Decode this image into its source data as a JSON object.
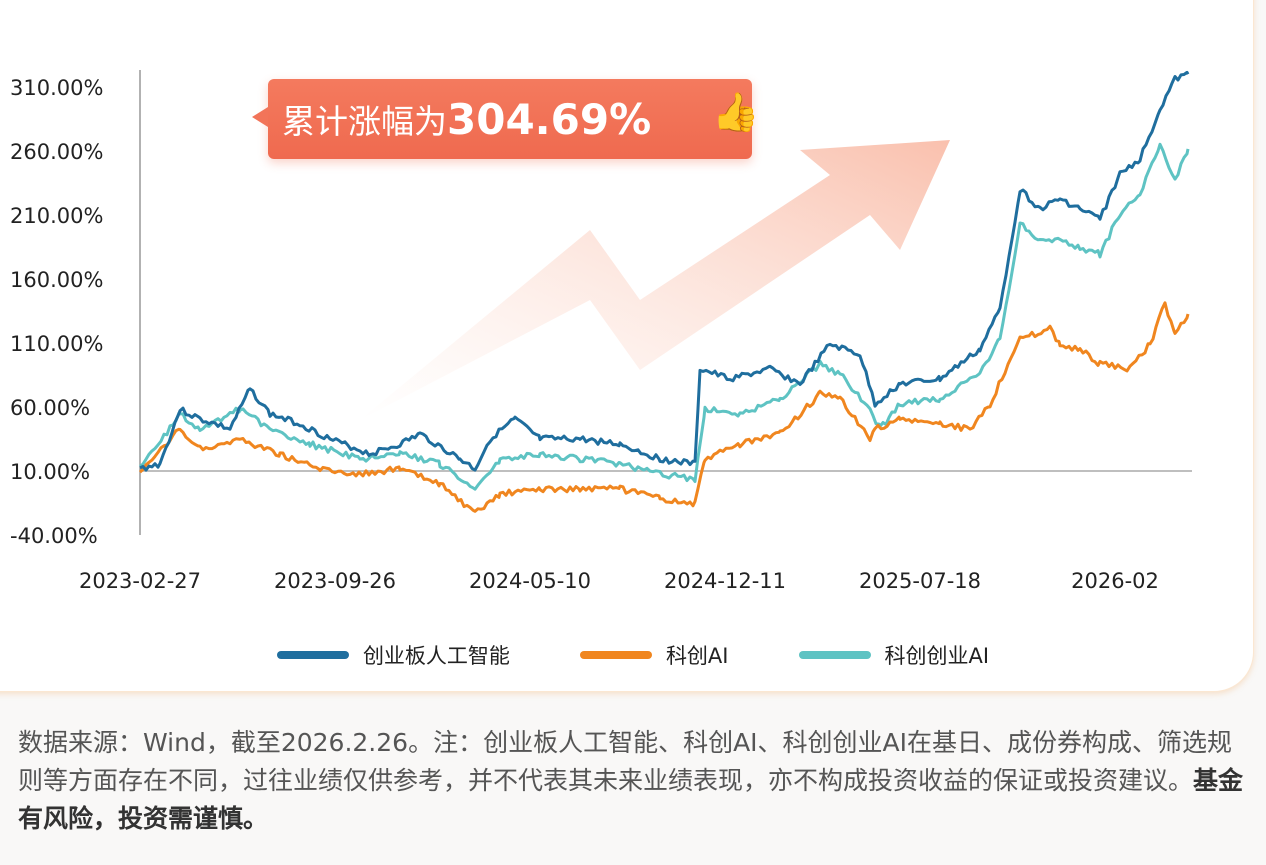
{
  "chart_data": {
    "type": "line",
    "title": "",
    "xlabel": "",
    "ylabel": "",
    "x_ticks": [
      "2023-02-27",
      "2023-09-26",
      "2024-05-10",
      "2024-12-11",
      "2025-07-18",
      "2026-02"
    ],
    "y_ticks": [
      "310.00%",
      "260.00%",
      "210.00%",
      "160.00%",
      "110.00%",
      "60.00%",
      "10.00%",
      "-40.00%"
    ],
    "ylim": [
      -40,
      310
    ],
    "baseline": 10,
    "legend_position": "bottom",
    "series": [
      {
        "name": "创业板人工智能",
        "color": "#1f6e9e",
        "t": [
          0,
          20,
          40,
          60,
          90,
          110,
          130,
          160,
          190,
          230,
          260,
          280,
          320,
          335,
          350,
          375,
          400,
          440,
          480,
          520,
          555,
          560,
          590,
          630,
          660,
          690,
          720,
          735,
          760,
          800,
          840,
          860,
          880,
          900,
          920,
          940,
          960,
          980,
          1000,
          1020,
          1035,
          1048
        ],
        "values": [
          11.6,
          15.5,
          58,
          50.6,
          42.8,
          74,
          54.5,
          46.7,
          35,
          23.3,
          31,
          38.9,
          19.4,
          11.6,
          35,
          50.6,
          35,
          35,
          31,
          19.4,
          15.5,
          89.7,
          81.9,
          89.7,
          78,
          109,
          101,
          62.3,
          78,
          81.9,
          105,
          136.6,
          230,
          214.7,
          222.5,
          214.7,
          207,
          242,
          253.8,
          292.8,
          316,
          320
        ]
      },
      {
        "name": "科创AI",
        "color": "#f0861f",
        "t": [
          0,
          40,
          60,
          100,
          140,
          180,
          220,
          260,
          300,
          335,
          360,
          400,
          440,
          480,
          520,
          555,
          565,
          600,
          640,
          680,
          700,
          730,
          735,
          760,
          800,
          830,
          850,
          880,
          910,
          920,
          940,
          960,
          990,
          1010,
          1025,
          1035,
          1048
        ],
        "values": [
          7.7,
          42.8,
          27.2,
          35,
          23.3,
          11.6,
          7.7,
          11.6,
          -0.2,
          -23.6,
          -8,
          -4,
          -4,
          -4,
          -11.9,
          -15.8,
          19.4,
          31,
          38.9,
          70.2,
          66.3,
          35,
          42.8,
          50.6,
          46.7,
          42.8,
          62.3,
          113,
          121,
          109,
          105,
          93.6,
          89.7,
          109,
          140.5,
          117,
          132.7
        ]
      },
      {
        "name": "科创创业AI",
        "color": "#5ec3c3",
        "t": [
          0,
          40,
          60,
          100,
          130,
          170,
          220,
          260,
          300,
          335,
          360,
          400,
          440,
          480,
          520,
          555,
          565,
          600,
          640,
          680,
          700,
          730,
          740,
          760,
          800,
          840,
          860,
          880,
          900,
          920,
          940,
          960,
          980,
          1000,
          1020,
          1035,
          1048
        ],
        "values": [
          11.6,
          54.5,
          42.8,
          58.4,
          42.8,
          31,
          19.4,
          23.3,
          15.5,
          -4,
          19.4,
          23.3,
          19.4,
          15.5,
          7.7,
          3.8,
          58.4,
          54.5,
          66.3,
          93.6,
          85.8,
          58.4,
          42.8,
          62.3,
          66.3,
          85.8,
          113,
          203,
          191,
          191,
          183.4,
          179.5,
          210.8,
          226.4,
          265.5,
          238,
          261.6
        ]
      }
    ]
  },
  "callout": {
    "prefix": "累计涨幅为",
    "value": "304.69%",
    "icon": "thumbs-up-icon"
  },
  "note": {
    "text": "数据来源：Wind，截至2026.2.26。注：创业板人工智能、科创AI、科创创业AI在基日、成份券构成、筛选规则等方面存在不同，过往业绩仅供参考，并不代表其未来业绩表现，亦不构成投资收益的保证或投资建议。",
    "bold": "基金有风险，投资需谨慎。"
  }
}
